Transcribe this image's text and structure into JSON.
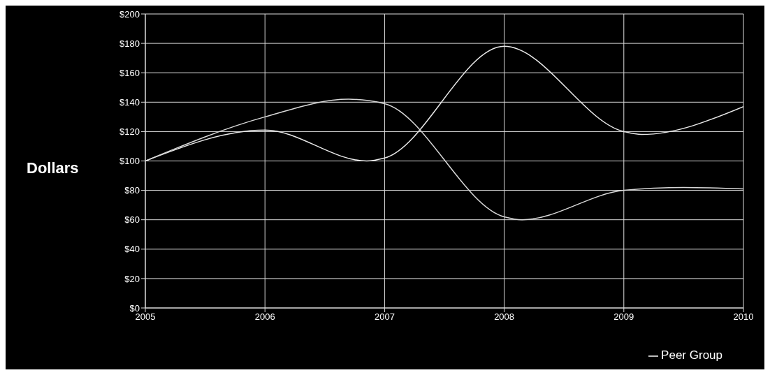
{
  "chart_data": {
    "type": "line",
    "ylabel": "Dollars",
    "xlim": [
      2005,
      2010
    ],
    "xticks": [
      2005,
      2006,
      2007,
      2008,
      2009,
      2010
    ],
    "ylim": [
      0,
      200
    ],
    "yticks": [
      {
        "value": 0,
        "label": "$0"
      },
      {
        "value": 20,
        "label": "$20"
      },
      {
        "value": 40,
        "label": "$40"
      },
      {
        "value": 60,
        "label": "$60"
      },
      {
        "value": 80,
        "label": "$80"
      },
      {
        "value": 100,
        "label": "$100"
      },
      {
        "value": 120,
        "label": "$120"
      },
      {
        "value": 140,
        "label": "$140"
      },
      {
        "value": 160,
        "label": "$160"
      },
      {
        "value": 180,
        "label": "$180"
      },
      {
        "value": 200,
        "label": "$200"
      }
    ],
    "series": [
      {
        "color": "#e8e8e8",
        "x": [
          2005,
          2006,
          2006.85,
          2007,
          2008,
          2009,
          2009.15,
          2010
        ],
        "values": [
          100,
          121,
          100,
          102,
          178,
          120,
          118,
          137
        ]
      },
      {
        "name": "Peer Group",
        "color": "#d8d8d8",
        "x": [
          2005,
          2006,
          2006.7,
          2007,
          2008,
          2008.15,
          2009,
          2009.5,
          2010
        ],
        "values": [
          100,
          130,
          142,
          139,
          62,
          60,
          80,
          82,
          81
        ]
      }
    ],
    "grid": true,
    "legend": "bottom right",
    "marker": "none",
    "line_style": "solid"
  }
}
